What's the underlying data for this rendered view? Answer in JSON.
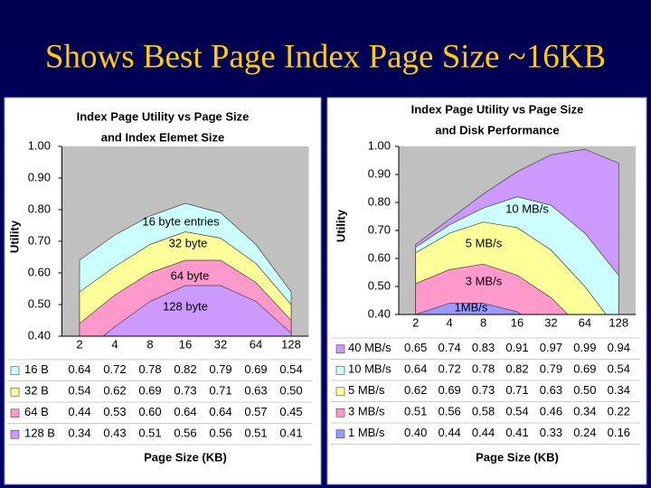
{
  "slide_title": "Shows Best Page Index Page Size ~16KB",
  "chart_data": [
    {
      "type": "area",
      "title": [
        "Index Page Utility vs Page Size",
        "and Index Elemet Size"
      ],
      "y_label": "Utility",
      "x_label": "Page Size (KB)",
      "categories": [
        "2",
        "4",
        "8",
        "16",
        "32",
        "64",
        "128"
      ],
      "ylim": [
        0.4,
        1.0
      ],
      "yticks": [
        {
          "value": 0.4,
          "label": "0.40"
        },
        {
          "value": 0.5,
          "label": "0.50"
        },
        {
          "value": 0.6,
          "label": "0.60"
        },
        {
          "value": 0.7,
          "label": "0.70"
        },
        {
          "value": 0.8,
          "label": "0.80"
        },
        {
          "value": 0.9,
          "label": "0.90"
        },
        {
          "value": 1.0,
          "label": "1.00"
        }
      ],
      "series": [
        {
          "name": "16 B",
          "label": "16 byte entries",
          "color": "#ccffff",
          "values": [
            0.64,
            0.72,
            0.78,
            0.82,
            0.79,
            0.69,
            0.54
          ],
          "value_labels": [
            "0.64",
            "0.72",
            "0.78",
            "0.82",
            "0.79",
            "0.69",
            "0.54"
          ]
        },
        {
          "name": "32 B",
          "label": "32 byte",
          "color": "#ffff99",
          "values": [
            0.54,
            0.62,
            0.69,
            0.73,
            0.71,
            0.63,
            0.5
          ],
          "value_labels": [
            "0.54",
            "0.62",
            "0.69",
            "0.73",
            "0.71",
            "0.63",
            "0.50"
          ]
        },
        {
          "name": "64 B",
          "label": "64 byte",
          "color": "#ff99cc",
          "values": [
            0.44,
            0.53,
            0.6,
            0.64,
            0.64,
            0.57,
            0.45
          ],
          "value_labels": [
            "0.44",
            "0.53",
            "0.60",
            "0.64",
            "0.64",
            "0.57",
            "0.45"
          ]
        },
        {
          "name": "128 B",
          "label": "128 byte",
          "color": "#cc99ff",
          "values": [
            0.34,
            0.43,
            0.51,
            0.56,
            0.56,
            0.51,
            0.41
          ],
          "value_labels": [
            "0.34",
            "0.43",
            "0.51",
            "0.56",
            "0.56",
            "0.51",
            "0.41"
          ]
        }
      ]
    },
    {
      "type": "area",
      "title": [
        "Index Page Utility vs Page Size",
        "and Disk Performance"
      ],
      "y_label": "Utility",
      "x_label": "Page Size (KB)",
      "categories": [
        "2",
        "4",
        "8",
        "16",
        "32",
        "64",
        "128"
      ],
      "ylim": [
        0.4,
        1.0
      ],
      "yticks": [
        {
          "value": 0.4,
          "label": "0.40"
        },
        {
          "value": 0.5,
          "label": "0.50"
        },
        {
          "value": 0.6,
          "label": "0.60"
        },
        {
          "value": 0.7,
          "label": "0.70"
        },
        {
          "value": 0.8,
          "label": "0.80"
        },
        {
          "value": 0.9,
          "label": "0.90"
        },
        {
          "value": 1.0,
          "label": "1.00"
        }
      ],
      "series": [
        {
          "name": "40 MB/s",
          "color": "#cc99ff",
          "values": [
            0.65,
            0.74,
            0.83,
            0.91,
            0.97,
            0.99,
            0.94
          ],
          "value_labels": [
            "0.65",
            "0.74",
            "0.83",
            "0.91",
            "0.97",
            "0.99",
            "0.94"
          ]
        },
        {
          "name": "10 MB/s",
          "label": "10 MB/s",
          "color": "#ccffff",
          "values": [
            0.64,
            0.72,
            0.78,
            0.82,
            0.79,
            0.69,
            0.54
          ],
          "value_labels": [
            "0.64",
            "0.72",
            "0.78",
            "0.82",
            "0.79",
            "0.69",
            "0.54"
          ]
        },
        {
          "name": "5 MB/s",
          "label": "5 MB/s",
          "color": "#ffff99",
          "values": [
            0.62,
            0.69,
            0.73,
            0.71,
            0.63,
            0.5,
            0.34
          ],
          "value_labels": [
            "0.62",
            "0.69",
            "0.73",
            "0.71",
            "0.63",
            "0.50",
            "0.34"
          ]
        },
        {
          "name": "3 MB/s",
          "label": "3 MB/s",
          "color": "#ff99cc",
          "values": [
            0.51,
            0.56,
            0.58,
            0.54,
            0.46,
            0.34,
            0.22
          ],
          "value_labels": [
            "0.51",
            "0.56",
            "0.58",
            "0.54",
            "0.46",
            "0.34",
            "0.22"
          ]
        },
        {
          "name": "1 MB/s",
          "label": "1MB/s",
          "color": "#9999ff",
          "values": [
            0.4,
            0.44,
            0.44,
            0.41,
            0.33,
            0.24,
            0.16
          ],
          "value_labels": [
            "0.40",
            "0.44",
            "0.44",
            "0.41",
            "0.33",
            "0.24",
            "0.16"
          ]
        }
      ]
    }
  ]
}
